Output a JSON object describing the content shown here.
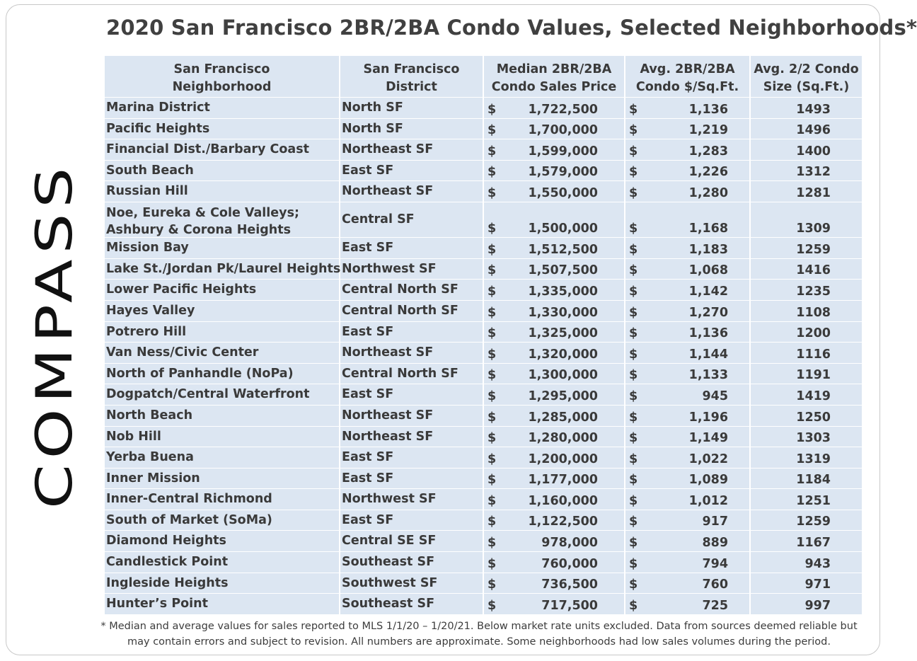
{
  "title": "2020 San Francisco 2BR/2BA Condo Values, Selected Neighborhoods*",
  "logo": "COMPASS",
  "colors": {
    "row_bg": "#dce6f2",
    "text": "#3a3a3a",
    "border": "#c8c8c8"
  },
  "footnote": "* Median and average values for sales reported to MLS 1/1/20 – 1/20/21. Below market rate units excluded. Data from sources deemed reliable but\nmay contain errors and subject to revision. All numbers are approximate. Some neighborhoods had low sales volumes during the period.",
  "chart_data": {
    "type": "table",
    "title": "2020 San Francisco 2BR/2BA Condo Values, Selected Neighborhoods*",
    "currency_symbol": "$",
    "columns": [
      "San Francisco\nNeighborhood",
      "San Francisco District",
      "Median 2BR/2BA\nCondo Sales Price",
      "Avg. 2BR/2BA\nCondo $/Sq.Ft.",
      "Avg. 2/2 Condo\nSize (Sq.Ft.)"
    ],
    "rows": [
      {
        "neighborhood": "Marina District",
        "district": "North SF",
        "median_price": "1,722,500",
        "price_per_sqft": "1,136",
        "size_sqft": "1493"
      },
      {
        "neighborhood": "Pacific Heights",
        "district": "North SF",
        "median_price": "1,700,000",
        "price_per_sqft": "1,219",
        "size_sqft": "1496"
      },
      {
        "neighborhood": "Financial Dist./Barbary Coast",
        "district": "Northeast SF",
        "median_price": "1,599,000",
        "price_per_sqft": "1,283",
        "size_sqft": "1400"
      },
      {
        "neighborhood": "South Beach",
        "district": "East SF",
        "median_price": "1,579,000",
        "price_per_sqft": "1,226",
        "size_sqft": "1312"
      },
      {
        "neighborhood": "Russian Hill",
        "district": "Northeast SF",
        "median_price": "1,550,000",
        "price_per_sqft": "1,280",
        "size_sqft": "1281"
      },
      {
        "neighborhood": "Noe, Eureka & Cole Valleys; Ashbury & Corona Heights",
        "district": "Central SF",
        "median_price": "1,500,000",
        "price_per_sqft": "1,168",
        "size_sqft": "1309",
        "tall": true
      },
      {
        "neighborhood": "Mission Bay",
        "district": "East SF",
        "median_price": "1,512,500",
        "price_per_sqft": "1,183",
        "size_sqft": "1259"
      },
      {
        "neighborhood": "Lake St./Jordan Pk/Laurel Heights",
        "district": "Northwest SF",
        "median_price": "1,507,500",
        "price_per_sqft": "1,068",
        "size_sqft": "1416"
      },
      {
        "neighborhood": "Lower Pacific Heights",
        "district": "Central North SF",
        "median_price": "1,335,000",
        "price_per_sqft": "1,142",
        "size_sqft": "1235"
      },
      {
        "neighborhood": "Hayes Valley",
        "district": "Central North SF",
        "median_price": "1,330,000",
        "price_per_sqft": "1,270",
        "size_sqft": "1108"
      },
      {
        "neighborhood": "Potrero Hill",
        "district": "East SF",
        "median_price": "1,325,000",
        "price_per_sqft": "1,136",
        "size_sqft": "1200"
      },
      {
        "neighborhood": "Van Ness/Civic Center",
        "district": "Northeast SF",
        "median_price": "1,320,000",
        "price_per_sqft": "1,144",
        "size_sqft": "1116"
      },
      {
        "neighborhood": "North of Panhandle (NoPa)",
        "district": "Central North SF",
        "median_price": "1,300,000",
        "price_per_sqft": "1,133",
        "size_sqft": "1191"
      },
      {
        "neighborhood": "Dogpatch/Central Waterfront",
        "district": "East SF",
        "median_price": "1,295,000",
        "price_per_sqft": "945",
        "size_sqft": "1419"
      },
      {
        "neighborhood": "North Beach",
        "district": "Northeast SF",
        "median_price": "1,285,000",
        "price_per_sqft": "1,196",
        "size_sqft": "1250"
      },
      {
        "neighborhood": "Nob Hill",
        "district": "Northeast SF",
        "median_price": "1,280,000",
        "price_per_sqft": "1,149",
        "size_sqft": "1303"
      },
      {
        "neighborhood": "Yerba Buena",
        "district": "East SF",
        "median_price": "1,200,000",
        "price_per_sqft": "1,022",
        "size_sqft": "1319"
      },
      {
        "neighborhood": "Inner Mission",
        "district": "East SF",
        "median_price": "1,177,000",
        "price_per_sqft": "1,089",
        "size_sqft": "1184"
      },
      {
        "neighborhood": "Inner-Central Richmond",
        "district": "Northwest SF",
        "median_price": "1,160,000",
        "price_per_sqft": "1,012",
        "size_sqft": "1251"
      },
      {
        "neighborhood": "South of Market (SoMa)",
        "district": "East SF",
        "median_price": "1,122,500",
        "price_per_sqft": "917",
        "size_sqft": "1259"
      },
      {
        "neighborhood": "Diamond Heights",
        "district": "Central SE SF",
        "median_price": "978,000",
        "price_per_sqft": "889",
        "size_sqft": "1167"
      },
      {
        "neighborhood": "Candlestick Point",
        "district": "Southeast SF",
        "median_price": "760,000",
        "price_per_sqft": "794",
        "size_sqft": "943"
      },
      {
        "neighborhood": "Ingleside Heights",
        "district": "Southwest SF",
        "median_price": "736,500",
        "price_per_sqft": "760",
        "size_sqft": "971"
      },
      {
        "neighborhood": "Hunter’s Point",
        "district": "Southeast SF",
        "median_price": "717,500",
        "price_per_sqft": "725",
        "size_sqft": "997"
      }
    ]
  }
}
